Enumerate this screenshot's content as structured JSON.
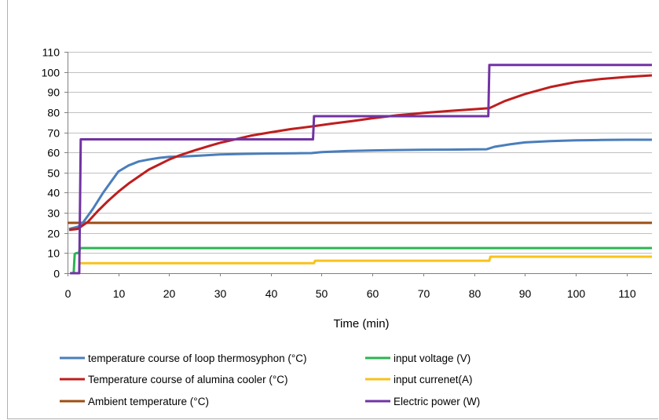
{
  "chart_data": {
    "type": "line",
    "title": "",
    "xlabel": "Time (min)",
    "ylabel": "",
    "xlim": [
      0,
      115
    ],
    "ylim": [
      0,
      110
    ],
    "xticks": [
      0,
      10,
      20,
      30,
      40,
      50,
      60,
      70,
      80,
      90,
      100,
      110
    ],
    "yticks": [
      0,
      10,
      20,
      30,
      40,
      50,
      60,
      70,
      80,
      90,
      100,
      110
    ],
    "grid": "horizontal",
    "legend_position": "bottom",
    "series": [
      {
        "name": "temperature course of loop thermosyphon (°C)",
        "color": "#4a7ebb",
        "points": [
          [
            0.3,
            22
          ],
          [
            2,
            23
          ],
          [
            3,
            25
          ],
          [
            5,
            32
          ],
          [
            7,
            40
          ],
          [
            9,
            47
          ],
          [
            10,
            50.5
          ],
          [
            12,
            53.5
          ],
          [
            14,
            55.5
          ],
          [
            16,
            56.5
          ],
          [
            18,
            57.3
          ],
          [
            20,
            57.8
          ],
          [
            23,
            58
          ],
          [
            26,
            58.4
          ],
          [
            30,
            59
          ],
          [
            35,
            59.3
          ],
          [
            40,
            59.5
          ],
          [
            45,
            59.6
          ],
          [
            48,
            59.7
          ],
          [
            50,
            60.2
          ],
          [
            55,
            60.7
          ],
          [
            60,
            61
          ],
          [
            65,
            61.2
          ],
          [
            70,
            61.3
          ],
          [
            75,
            61.4
          ],
          [
            80,
            61.5
          ],
          [
            82.5,
            61.6
          ],
          [
            84,
            62.8
          ],
          [
            87,
            64
          ],
          [
            90,
            65
          ],
          [
            95,
            65.6
          ],
          [
            100,
            66
          ],
          [
            105,
            66.2
          ],
          [
            110,
            66.3
          ],
          [
            115,
            66.3
          ]
        ]
      },
      {
        "name": "Temperature course of alumina cooler (°C)",
        "color": "#be1e1e",
        "points": [
          [
            0.3,
            21.5
          ],
          [
            2,
            22
          ],
          [
            4,
            25.5
          ],
          [
            6,
            31
          ],
          [
            8,
            36
          ],
          [
            10,
            40.5
          ],
          [
            12,
            44.5
          ],
          [
            14,
            48
          ],
          [
            16,
            51.5
          ],
          [
            18,
            54
          ],
          [
            20,
            56.5
          ],
          [
            22,
            58.5
          ],
          [
            25,
            61
          ],
          [
            28,
            63.3
          ],
          [
            30,
            64.8
          ],
          [
            33,
            66.5
          ],
          [
            36,
            68.3
          ],
          [
            40,
            70
          ],
          [
            44,
            71.6
          ],
          [
            48,
            72.9
          ],
          [
            52,
            74.3
          ],
          [
            56,
            75.6
          ],
          [
            60,
            77
          ],
          [
            65,
            78.5
          ],
          [
            70,
            79.6
          ],
          [
            75,
            80.6
          ],
          [
            80,
            81.5
          ],
          [
            83,
            82
          ],
          [
            86,
            85.5
          ],
          [
            90,
            89
          ],
          [
            95,
            92.5
          ],
          [
            100,
            95
          ],
          [
            105,
            96.5
          ],
          [
            110,
            97.5
          ],
          [
            115,
            98.3
          ]
        ]
      },
      {
        "name": "Ambient temperature (°C)",
        "color": "#9b4f13",
        "points": [
          [
            0,
            25
          ],
          [
            115,
            25
          ]
        ]
      },
      {
        "name": "input voltage (V)",
        "color": "#2db352",
        "points": [
          [
            0.5,
            0
          ],
          [
            1.2,
            0
          ],
          [
            1.4,
            9.5
          ],
          [
            1.7,
            10
          ],
          [
            2.2,
            10
          ],
          [
            2.5,
            12.5
          ],
          [
            115,
            12.5
          ]
        ]
      },
      {
        "name": "input currenet(A)",
        "color": "#f8c21b",
        "points": [
          [
            2.2,
            5
          ],
          [
            48.5,
            5
          ],
          [
            48.7,
            6.2
          ],
          [
            83,
            6.2
          ],
          [
            83.2,
            8.2
          ],
          [
            115,
            8.2
          ]
        ]
      },
      {
        "name": "Electric power (W)",
        "color": "#7133a3",
        "points": [
          [
            0.5,
            0
          ],
          [
            2.3,
            0
          ],
          [
            2.6,
            66.5
          ],
          [
            48.3,
            66.5
          ],
          [
            48.5,
            78
          ],
          [
            82.8,
            78
          ],
          [
            83,
            103.5
          ],
          [
            115,
            103.5
          ]
        ]
      }
    ]
  }
}
